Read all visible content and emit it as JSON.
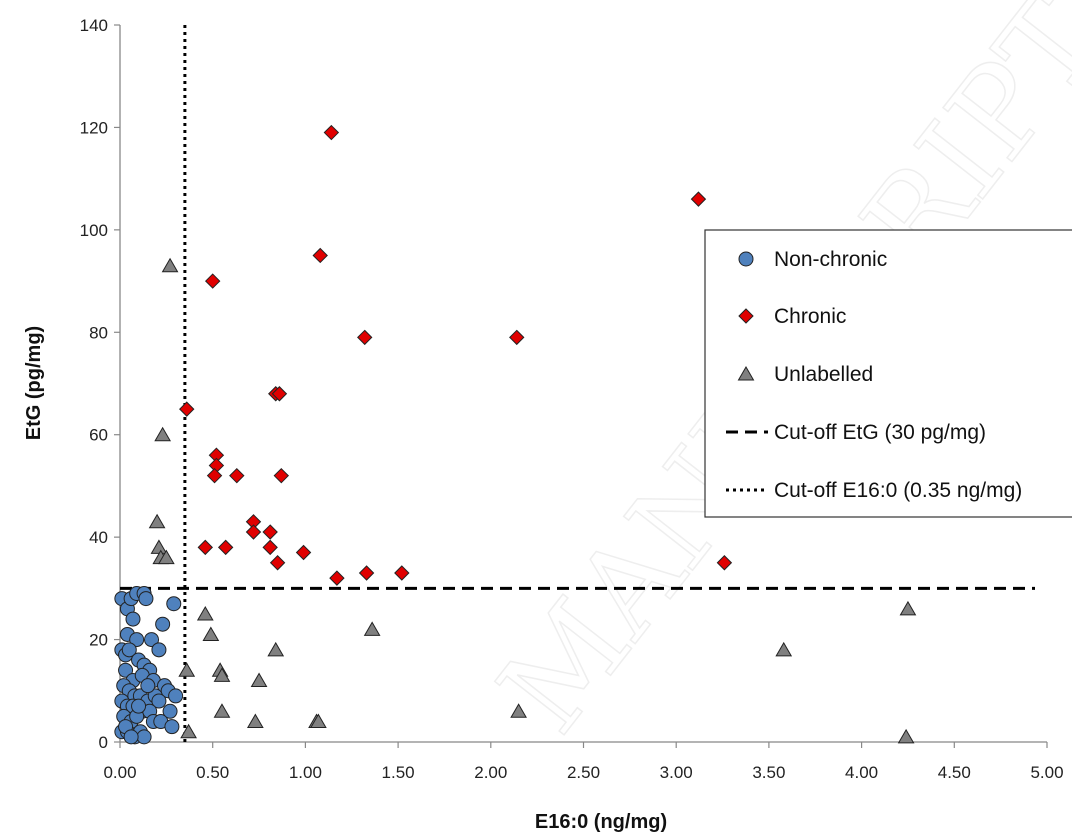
{
  "chart_data": {
    "type": "scatter",
    "xlabel": "E16:0 (ng/mg)",
    "ylabel": "EtG (pg/mg)",
    "xlim": [
      0,
      5
    ],
    "ylim": [
      0,
      140
    ],
    "x_ticks": [
      "0.00",
      "0.50",
      "1.00",
      "1.50",
      "2.00",
      "2.50",
      "3.00",
      "3.50",
      "4.00",
      "4.50",
      "5.00"
    ],
    "y_ticks": [
      "0",
      "20",
      "40",
      "60",
      "80",
      "100",
      "120",
      "140"
    ],
    "grid": false,
    "legend_position": "right",
    "watermark": "MANUSCRIPT",
    "series": [
      {
        "name": "Non-chronic",
        "marker": "circle",
        "color": "#4f81bd",
        "points": [
          [
            0.01,
            28
          ],
          [
            0.04,
            26
          ],
          [
            0.06,
            28
          ],
          [
            0.09,
            29
          ],
          [
            0.13,
            29
          ],
          [
            0.14,
            28
          ],
          [
            0.29,
            27
          ],
          [
            0.07,
            24
          ],
          [
            0.23,
            23
          ],
          [
            0.04,
            21
          ],
          [
            0.09,
            20
          ],
          [
            0.17,
            20
          ],
          [
            0.01,
            18
          ],
          [
            0.03,
            17
          ],
          [
            0.05,
            18
          ],
          [
            0.21,
            18
          ],
          [
            0.1,
            16
          ],
          [
            0.13,
            15
          ],
          [
            0.16,
            14
          ],
          [
            0.03,
            14
          ],
          [
            0.07,
            12
          ],
          [
            0.12,
            13
          ],
          [
            0.18,
            12
          ],
          [
            0.24,
            11
          ],
          [
            0.02,
            11
          ],
          [
            0.05,
            10
          ],
          [
            0.26,
            10
          ],
          [
            0.08,
            9
          ],
          [
            0.11,
            9
          ],
          [
            0.15,
            8
          ],
          [
            0.19,
            9
          ],
          [
            0.3,
            9
          ],
          [
            0.01,
            8
          ],
          [
            0.04,
            7
          ],
          [
            0.07,
            7
          ],
          [
            0.21,
            8
          ],
          [
            0.12,
            6
          ],
          [
            0.16,
            6
          ],
          [
            0.27,
            6
          ],
          [
            0.02,
            5
          ],
          [
            0.06,
            4
          ],
          [
            0.09,
            5
          ],
          [
            0.18,
            4
          ],
          [
            0.22,
            4
          ],
          [
            0.28,
            3
          ],
          [
            0.01,
            2
          ],
          [
            0.04,
            2
          ],
          [
            0.08,
            1
          ],
          [
            0.11,
            2
          ],
          [
            0.13,
            1
          ],
          [
            0.03,
            3
          ],
          [
            0.06,
            1
          ],
          [
            0.15,
            11
          ],
          [
            0.1,
            7
          ]
        ]
      },
      {
        "name": "Chronic",
        "marker": "diamond",
        "color": "#e00000",
        "points": [
          [
            1.14,
            119
          ],
          [
            3.12,
            106
          ],
          [
            1.08,
            95
          ],
          [
            0.5,
            90
          ],
          [
            1.32,
            79
          ],
          [
            2.14,
            79
          ],
          [
            0.84,
            68
          ],
          [
            0.86,
            68
          ],
          [
            0.36,
            65
          ],
          [
            0.52,
            56
          ],
          [
            0.52,
            54
          ],
          [
            0.51,
            52
          ],
          [
            0.63,
            52
          ],
          [
            0.87,
            52
          ],
          [
            0.72,
            43
          ],
          [
            0.81,
            41
          ],
          [
            0.72,
            41
          ],
          [
            0.46,
            38
          ],
          [
            0.57,
            38
          ],
          [
            0.81,
            38
          ],
          [
            0.99,
            37
          ],
          [
            0.85,
            35
          ],
          [
            3.26,
            35
          ],
          [
            1.33,
            33
          ],
          [
            1.52,
            33
          ],
          [
            1.17,
            32
          ]
        ]
      },
      {
        "name": "Unlabelled",
        "marker": "triangle",
        "color": "#808080",
        "points": [
          [
            0.27,
            93
          ],
          [
            0.23,
            60
          ],
          [
            0.2,
            43
          ],
          [
            0.21,
            38
          ],
          [
            0.22,
            36
          ],
          [
            0.25,
            36
          ],
          [
            0.46,
            25
          ],
          [
            4.25,
            26
          ],
          [
            1.36,
            22
          ],
          [
            0.49,
            21
          ],
          [
            0.84,
            18
          ],
          [
            3.58,
            18
          ],
          [
            0.36,
            14
          ],
          [
            0.54,
            14
          ],
          [
            0.55,
            13
          ],
          [
            0.75,
            12
          ],
          [
            0.55,
            6
          ],
          [
            2.15,
            6
          ],
          [
            0.73,
            4
          ],
          [
            1.06,
            4
          ],
          [
            1.07,
            4
          ],
          [
            0.37,
            2
          ],
          [
            4.24,
            1
          ]
        ]
      }
    ],
    "reference_lines": [
      {
        "name": "Cut-off EtG (30 pg/mg)",
        "orientation": "horizontal",
        "value": 30,
        "style": "dashed"
      },
      {
        "name": "Cut-off E16:0 (0.35 ng/mg)",
        "orientation": "vertical",
        "value": 0.35,
        "style": "dotted"
      }
    ]
  }
}
